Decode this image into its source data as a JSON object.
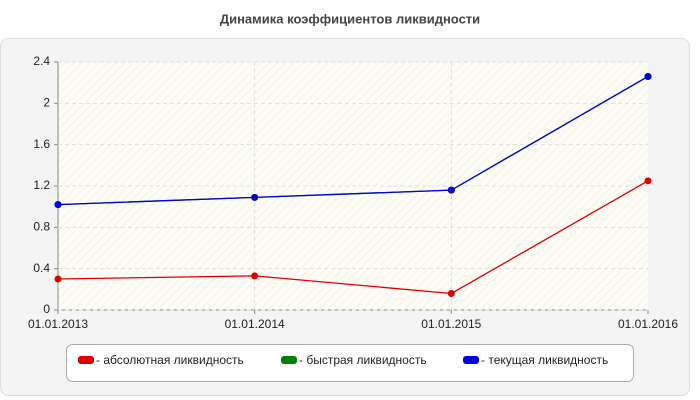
{
  "chart_data": {
    "type": "line",
    "title": "Динамика коэффициентов ликвидности",
    "categories": [
      "01.01.2013",
      "01.01.2014",
      "01.01.2015",
      "01.01.2016"
    ],
    "series": [
      {
        "name": "- абсолютная ликвидность",
        "color": "#e00000",
        "values": [
          0.3,
          0.33,
          0.16,
          1.25
        ]
      },
      {
        "name": "- быстрая ликвидность",
        "color": "#008000",
        "values": [
          1.02,
          1.09,
          1.16,
          2.26
        ]
      },
      {
        "name": "- текущая ликвидность",
        "color": "#0000e0",
        "values": [
          1.02,
          1.09,
          1.16,
          2.26
        ]
      }
    ],
    "ylim": [
      0,
      2.4
    ],
    "yticks": [
      0,
      0.4,
      0.8,
      1.2,
      1.6,
      2,
      2.4
    ],
    "grid": true
  }
}
